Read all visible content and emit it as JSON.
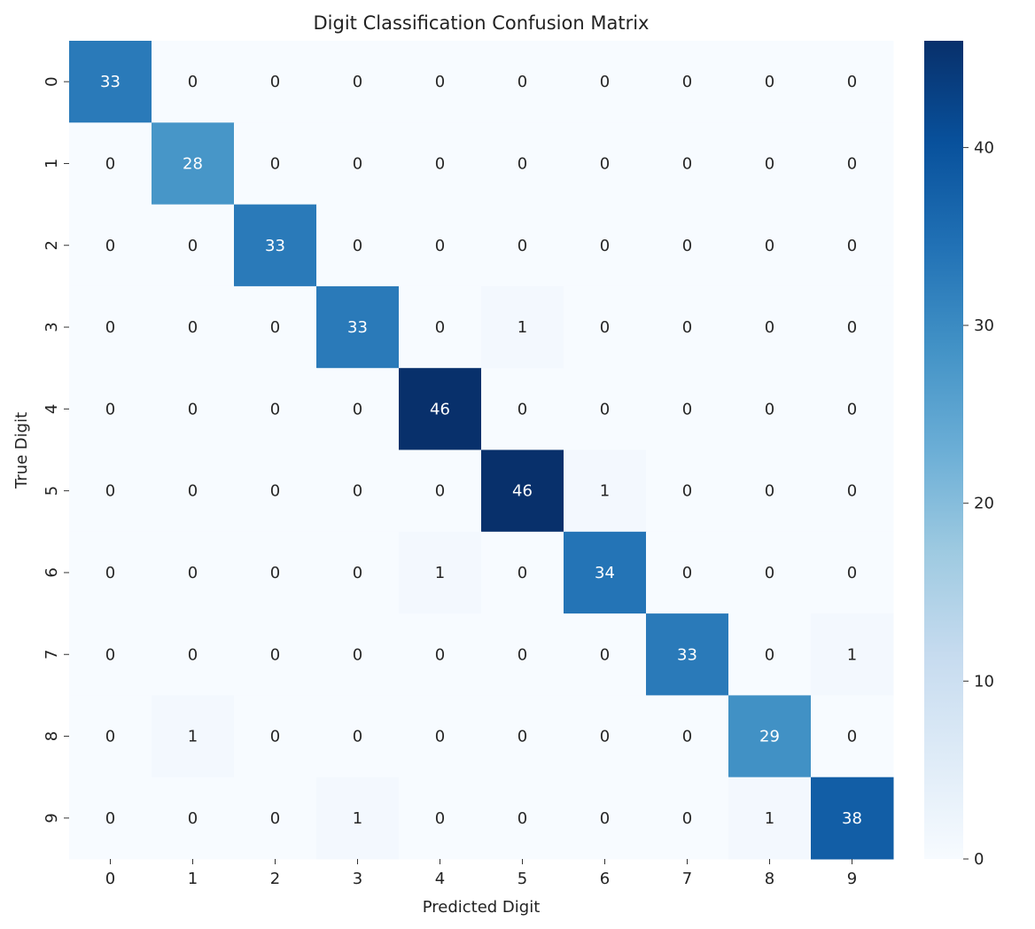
{
  "chart_data": {
    "type": "heatmap",
    "title": "Digit Classification Confusion Matrix",
    "xlabel": "Predicted Digit",
    "ylabel": "True Digit",
    "x_categories": [
      "0",
      "1",
      "2",
      "3",
      "4",
      "5",
      "6",
      "7",
      "8",
      "9"
    ],
    "y_categories": [
      "0",
      "1",
      "2",
      "3",
      "4",
      "5",
      "6",
      "7",
      "8",
      "9"
    ],
    "values": [
      [
        33,
        0,
        0,
        0,
        0,
        0,
        0,
        0,
        0,
        0
      ],
      [
        0,
        28,
        0,
        0,
        0,
        0,
        0,
        0,
        0,
        0
      ],
      [
        0,
        0,
        33,
        0,
        0,
        0,
        0,
        0,
        0,
        0
      ],
      [
        0,
        0,
        0,
        33,
        0,
        1,
        0,
        0,
        0,
        0
      ],
      [
        0,
        0,
        0,
        0,
        46,
        0,
        0,
        0,
        0,
        0
      ],
      [
        0,
        0,
        0,
        0,
        0,
        46,
        1,
        0,
        0,
        0
      ],
      [
        0,
        0,
        0,
        0,
        1,
        0,
        34,
        0,
        0,
        0
      ],
      [
        0,
        0,
        0,
        0,
        0,
        0,
        0,
        33,
        0,
        1
      ],
      [
        0,
        1,
        0,
        0,
        0,
        0,
        0,
        0,
        29,
        0
      ],
      [
        0,
        0,
        0,
        1,
        0,
        0,
        0,
        0,
        1,
        38
      ]
    ],
    "colormap": "Blues",
    "colorbar": {
      "range": [
        0,
        46
      ],
      "ticks": [
        0,
        10,
        20,
        30,
        40
      ]
    },
    "annotated": true,
    "grid": false
  }
}
